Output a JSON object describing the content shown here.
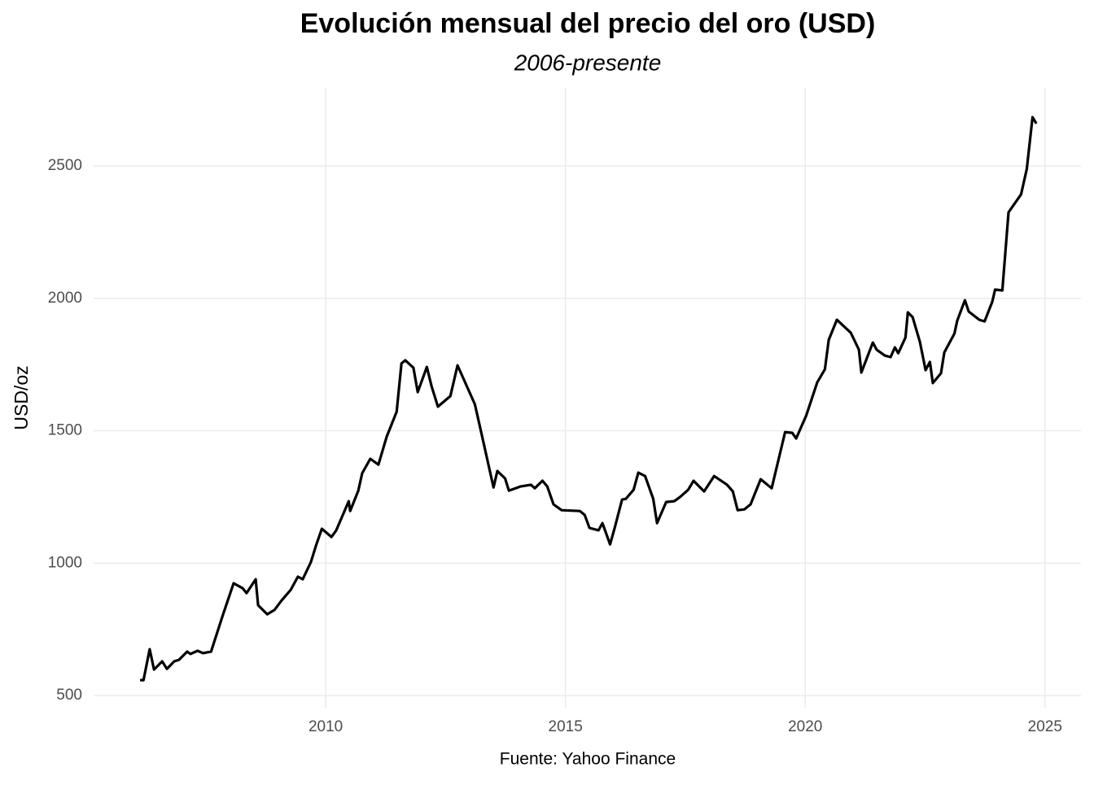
{
  "chart_data": {
    "type": "line",
    "title": "Evolución mensual del precio del oro (USD)",
    "subtitle": "2006-presente",
    "y_label": "USD/oz",
    "caption": "Fuente: Yahoo Finance",
    "x": [
      2006.13,
      2006.2,
      2006.33,
      2006.42,
      2006.59,
      2006.69,
      2006.84,
      2006.94,
      2007.11,
      2007.18,
      2007.33,
      2007.44,
      2007.61,
      2007.86,
      2008.08,
      2008.27,
      2008.35,
      2008.54,
      2008.59,
      2008.78,
      2008.93,
      2009.08,
      2009.27,
      2009.42,
      2009.52,
      2009.69,
      2009.8,
      2009.92,
      2010.12,
      2010.22,
      2010.48,
      2010.51,
      2010.68,
      2010.76,
      2010.93,
      2011.1,
      2011.27,
      2011.48,
      2011.58,
      2011.66,
      2011.83,
      2011.92,
      2012.11,
      2012.21,
      2012.34,
      2012.6,
      2012.75,
      2013.11,
      2013.26,
      2013.5,
      2013.58,
      2013.74,
      2013.82,
      2014.07,
      2014.28,
      2014.36,
      2014.52,
      2014.62,
      2014.75,
      2014.92,
      2015.3,
      2015.4,
      2015.5,
      2015.69,
      2015.77,
      2015.93,
      2016.03,
      2016.18,
      2016.26,
      2016.42,
      2016.52,
      2016.66,
      2016.83,
      2016.91,
      2017.1,
      2017.27,
      2017.39,
      2017.56,
      2017.67,
      2017.89,
      2018.1,
      2018.37,
      2018.49,
      2018.59,
      2018.73,
      2018.86,
      2019.07,
      2019.3,
      2019.58,
      2019.73,
      2019.81,
      2020.02,
      2020.25,
      2020.41,
      2020.49,
      2020.66,
      2020.95,
      2021.12,
      2021.17,
      2021.41,
      2021.49,
      2021.66,
      2021.78,
      2021.87,
      2021.94,
      2022.09,
      2022.14,
      2022.24,
      2022.39,
      2022.51,
      2022.6,
      2022.66,
      2022.83,
      2022.9,
      2023.11,
      2023.17,
      2023.33,
      2023.41,
      2023.63,
      2023.74,
      2023.9,
      2023.96,
      2024.11,
      2024.24,
      2024.5,
      2024.62,
      2024.74,
      2024.82
    ],
    "series": [
      {
        "name": "USD/oz",
        "color": "#000000",
        "values": [
          558,
          558,
          675,
          598,
          629,
          601,
          629,
          635,
          666,
          657,
          669,
          660,
          666,
          807,
          924,
          905,
          887,
          939,
          841,
          807,
          823,
          859,
          899,
          949,
          939,
          1004,
          1068,
          1130,
          1099,
          1124,
          1234,
          1197,
          1274,
          1339,
          1394,
          1372,
          1477,
          1572,
          1754,
          1766,
          1738,
          1646,
          1741,
          1667,
          1591,
          1631,
          1747,
          1600,
          1480,
          1286,
          1348,
          1320,
          1274,
          1290,
          1296,
          1283,
          1311,
          1290,
          1222,
          1200,
          1197,
          1182,
          1133,
          1124,
          1151,
          1071,
          1136,
          1240,
          1243,
          1277,
          1342,
          1329,
          1243,
          1151,
          1231,
          1234,
          1250,
          1277,
          1311,
          1271,
          1329,
          1296,
          1271,
          1200,
          1203,
          1222,
          1317,
          1283,
          1495,
          1492,
          1471,
          1557,
          1683,
          1732,
          1843,
          1919,
          1870,
          1806,
          1720,
          1833,
          1806,
          1784,
          1778,
          1815,
          1793,
          1852,
          1947,
          1929,
          1836,
          1729,
          1760,
          1680,
          1717,
          1796,
          1867,
          1916,
          1993,
          1950,
          1919,
          1913,
          1987,
          2033,
          2030,
          2325,
          2393,
          2488,
          2684,
          2660
        ]
      }
    ],
    "xlim": [
      2005.16,
      2025.75
    ],
    "xticks": [
      2010,
      2015,
      2020,
      2025
    ],
    "ylim": [
      454,
      2795
    ],
    "yticks": [
      500,
      1000,
      1500,
      2000,
      2500
    ],
    "grid": true
  }
}
